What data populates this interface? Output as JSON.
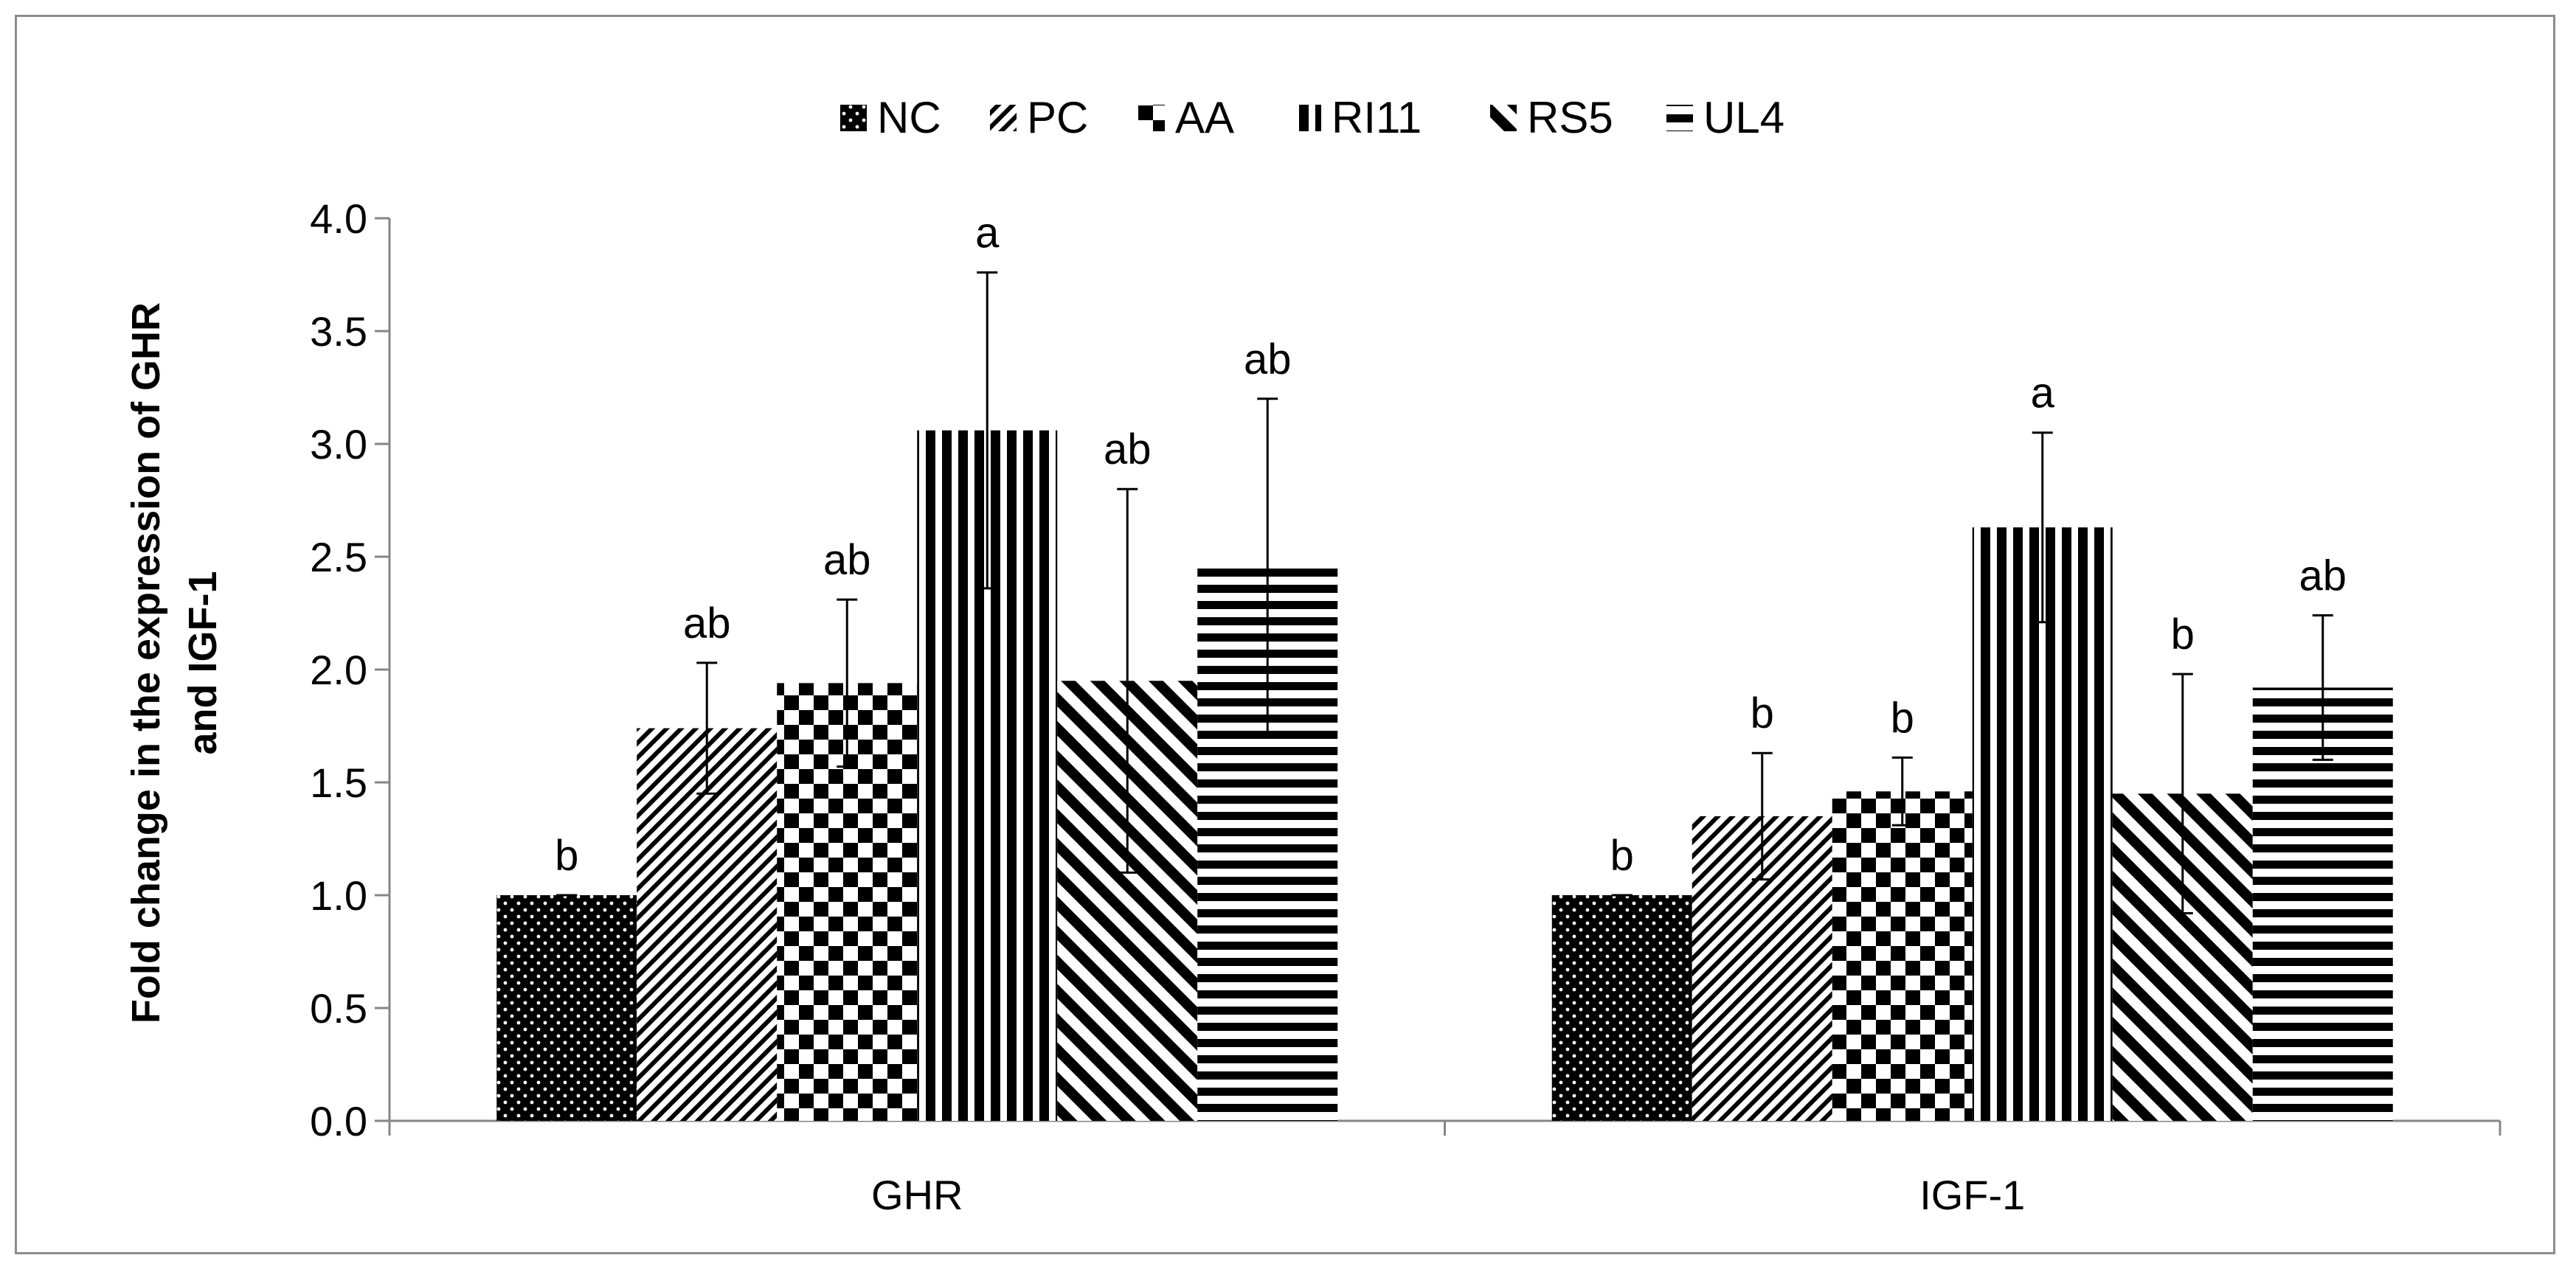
{
  "chart_data": {
    "type": "bar",
    "title": "",
    "xlabel": "",
    "ylabel_lines": [
      "Fold change in the  expression of GHR",
      "and IGF-1"
    ],
    "categories": [
      "GHR",
      "IGF-1"
    ],
    "ylim": [
      0,
      4.0
    ],
    "y_ticks": [
      "0.0",
      "0.5",
      "1.0",
      "1.5",
      "2.0",
      "2.5",
      "3.0",
      "3.5",
      "4.0"
    ],
    "grid": false,
    "legend_position": "top-center",
    "series": [
      {
        "name": "NC",
        "pattern": "dots",
        "values": [
          1.0,
          1.0
        ],
        "errors": [
          0.0,
          0.0
        ],
        "labels": [
          "b",
          "b"
        ]
      },
      {
        "name": "PC",
        "pattern": "diagonal-fine",
        "values": [
          1.74,
          1.35
        ],
        "errors": [
          0.29,
          0.28
        ],
        "labels": [
          "ab",
          "b"
        ]
      },
      {
        "name": "AA",
        "pattern": "checker",
        "values": [
          1.94,
          1.46
        ],
        "errors": [
          0.37,
          0.15
        ],
        "labels": [
          "ab",
          "b"
        ]
      },
      {
        "name": "RI11",
        "pattern": "vertical",
        "values": [
          3.06,
          2.63
        ],
        "errors": [
          0.7,
          0.42
        ],
        "labels": [
          "a",
          "a"
        ]
      },
      {
        "name": "RS5",
        "pattern": "diagonal-wide",
        "values": [
          1.95,
          1.45
        ],
        "errors": [
          0.85,
          0.53
        ],
        "labels": [
          "ab",
          "b"
        ]
      },
      {
        "name": "UL4",
        "pattern": "horizontal",
        "values": [
          2.45,
          1.92
        ],
        "errors": [
          0.75,
          0.32
        ],
        "labels": [
          "ab",
          "ab"
        ]
      }
    ]
  }
}
